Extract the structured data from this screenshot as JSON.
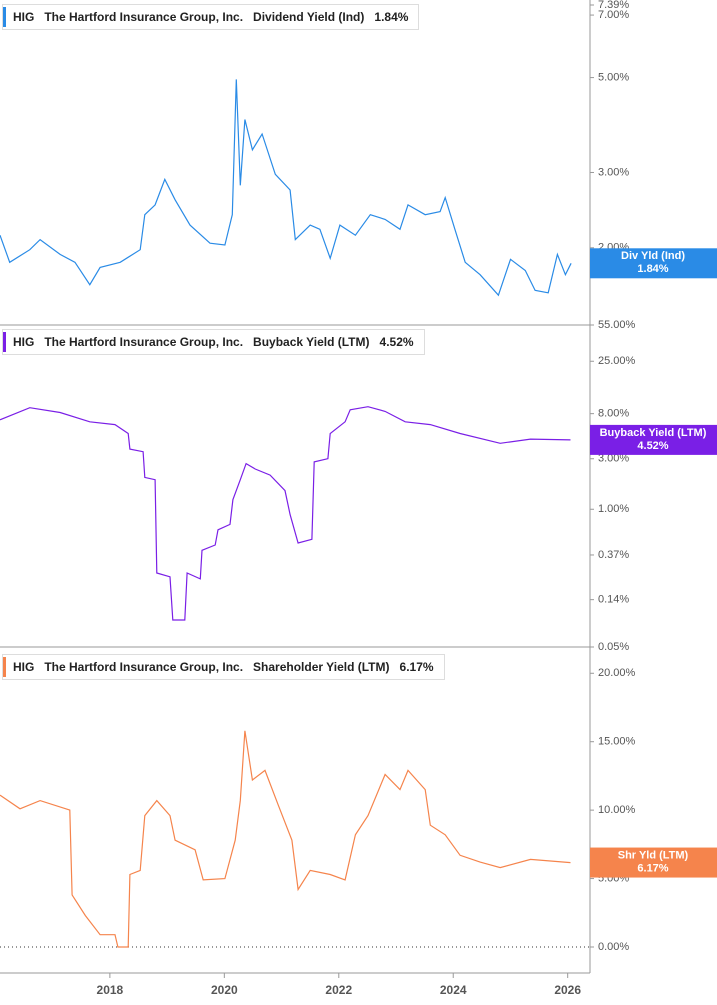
{
  "charts": [
    {
      "type": "line",
      "ticker": "HIG",
      "company": "The Hartford Insurance Group, Inc.",
      "title": "Dividend Yield (Ind)",
      "short_name": "Div Yld (Ind)",
      "current": {
        "value": 1.84,
        "label": "1.84%"
      },
      "color": "#2a8be6",
      "log_scale": true,
      "x": [
        2016.08,
        2016.25,
        2016.6,
        2016.78,
        2017.13,
        2017.39,
        2017.65,
        2017.83,
        2018.18,
        2018.53,
        2018.61,
        2018.79,
        2018.96,
        2019.14,
        2019.4,
        2019.75,
        2020.01,
        2020.14,
        2020.21,
        2020.28,
        2020.36,
        2020.49,
        2020.66,
        2020.89,
        2021.15,
        2021.24,
        2021.5,
        2021.67,
        2021.85,
        2022.02,
        2022.29,
        2022.55,
        2022.81,
        2023.07,
        2023.21,
        2023.51,
        2023.77,
        2023.86,
        2024.03,
        2024.21,
        2024.47,
        2024.79,
        2025.0,
        2025.26,
        2025.43,
        2025.66,
        2025.82,
        2025.96,
        2026.06
      ],
      "values": [
        2.14,
        1.85,
        1.98,
        2.09,
        1.93,
        1.85,
        1.64,
        1.8,
        1.85,
        1.98,
        2.39,
        2.52,
        2.89,
        2.59,
        2.26,
        2.05,
        2.03,
        2.39,
        4.95,
        2.8,
        3.99,
        3.39,
        3.69,
        2.97,
        2.73,
        2.09,
        2.26,
        2.21,
        1.89,
        2.26,
        2.14,
        2.39,
        2.33,
        2.21,
        2.52,
        2.39,
        2.43,
        2.62,
        2.21,
        1.85,
        1.73,
        1.55,
        1.88,
        1.77,
        1.59,
        1.57,
        1.93,
        1.73,
        1.84
      ],
      "xlim": [
        2016.08,
        2026.39
      ],
      "ylim": [
        1.32,
        7.39
      ],
      "yticks": [
        {
          "value": 2,
          "label": "2.00%"
        },
        {
          "value": 3,
          "label": "3.00%"
        },
        {
          "value": 5,
          "label": "5.00%"
        },
        {
          "value": 7,
          "label": "7.00%"
        },
        {
          "value": 7.39,
          "label": "7.39%"
        }
      ]
    },
    {
      "type": "line",
      "ticker": "HIG",
      "company": "The Hartford Insurance Group, Inc.",
      "title": "Buyback Yield (LTM)",
      "short_name": "Buyback Yield (LTM)",
      "current": {
        "value": 4.52,
        "label": "4.52%"
      },
      "color": "#7a1fe6",
      "log_scale": true,
      "x": [
        2016.08,
        2016.6,
        2017.13,
        2017.65,
        2018.09,
        2018.32,
        2018.35,
        2018.58,
        2018.61,
        2018.79,
        2018.82,
        2019.05,
        2019.1,
        2019.31,
        2019.35,
        2019.58,
        2019.61,
        2019.84,
        2019.89,
        2020.1,
        2020.15,
        2020.28,
        2020.38,
        2020.54,
        2020.8,
        2021.06,
        2021.15,
        2021.29,
        2021.53,
        2021.57,
        2021.81,
        2021.85,
        2022.11,
        2022.2,
        2022.51,
        2022.81,
        2023.16,
        2023.6,
        2024.12,
        2024.82,
        2025.35,
        2026.05
      ],
      "values": [
        7.0,
        9.1,
        8.2,
        6.7,
        6.3,
        5.2,
        3.7,
        3.5,
        2.0,
        1.9,
        0.25,
        0.23,
        0.09,
        0.09,
        0.25,
        0.22,
        0.41,
        0.46,
        0.64,
        0.72,
        1.23,
        1.9,
        2.7,
        2.4,
        2.1,
        1.5,
        0.89,
        0.48,
        0.52,
        2.8,
        3.0,
        5.2,
        6.7,
        8.7,
        9.3,
        8.4,
        6.7,
        6.3,
        5.2,
        4.2,
        4.6,
        4.52
      ],
      "xlim": [
        2016.08,
        2026.39
      ],
      "ylim": [
        0.05,
        55
      ],
      "yticks": [
        {
          "value": 0.05,
          "label": "0.05%"
        },
        {
          "value": 0.14,
          "label": "0.14%"
        },
        {
          "value": 0.37,
          "label": "0.37%"
        },
        {
          "value": 1,
          "label": "1.00%"
        },
        {
          "value": 3,
          "label": "3.00%"
        },
        {
          "value": 8,
          "label": "8.00%"
        },
        {
          "value": 25,
          "label": "25.00%"
        },
        {
          "value": 55,
          "label": "55.00%"
        }
      ]
    },
    {
      "type": "line",
      "ticker": "HIG",
      "company": "The Hartford Insurance Group, Inc.",
      "title": "Shareholder Yield (LTM)",
      "short_name": "Shr Yld (LTM)",
      "current": {
        "value": 6.17,
        "label": "6.17%"
      },
      "color": "#f5844c",
      "log_scale": false,
      "x": [
        2016.08,
        2016.43,
        2016.78,
        2017.3,
        2017.34,
        2017.57,
        2017.83,
        2018.09,
        2018.14,
        2018.32,
        2018.35,
        2018.53,
        2018.61,
        2018.82,
        2019.05,
        2019.14,
        2019.49,
        2019.63,
        2020.01,
        2020.19,
        2020.28,
        2020.36,
        2020.49,
        2020.71,
        2020.94,
        2021.18,
        2021.29,
        2021.5,
        2021.85,
        2022.11,
        2022.29,
        2022.51,
        2022.81,
        2023.07,
        2023.21,
        2023.51,
        2023.6,
        2023.86,
        2024.12,
        2024.47,
        2024.82,
        2025.35,
        2026.05
      ],
      "values": [
        11.1,
        10.1,
        10.7,
        10.0,
        3.8,
        2.3,
        0.9,
        0.9,
        0.0,
        0.0,
        5.3,
        5.6,
        9.6,
        10.7,
        9.6,
        7.8,
        7.1,
        4.9,
        5.0,
        7.8,
        10.7,
        15.8,
        12.2,
        12.9,
        10.4,
        7.8,
        4.2,
        5.6,
        5.3,
        4.9,
        8.2,
        9.6,
        12.6,
        11.5,
        12.9,
        11.5,
        8.9,
        8.2,
        6.7,
        6.2,
        5.8,
        6.4,
        6.17
      ],
      "xlim": [
        2016.08,
        2026.39
      ],
      "ylim": [
        -1.9,
        21.7
      ],
      "yticks": [
        {
          "value": 0,
          "label": "0.00%"
        },
        {
          "value": 5,
          "label": "5.00%"
        },
        {
          "value": 10,
          "label": "10.00%"
        },
        {
          "value": 15,
          "label": "15.00%"
        },
        {
          "value": 20,
          "label": "20.00%"
        }
      ],
      "xticks": [
        2018,
        2020,
        2022,
        2024,
        2026
      ]
    }
  ]
}
